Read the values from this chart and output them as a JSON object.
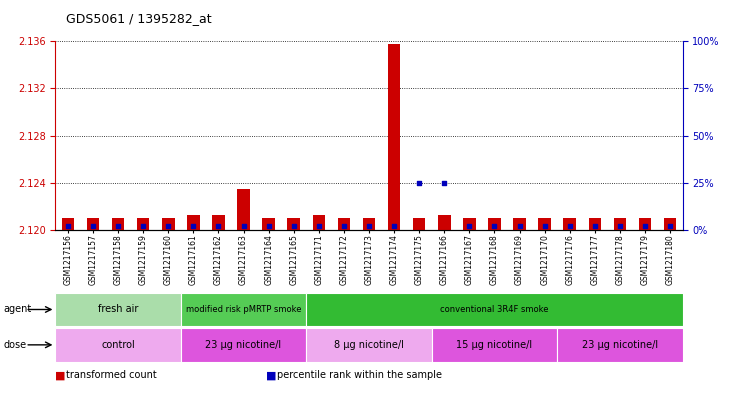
{
  "title": "GDS5061 / 1395282_at",
  "samples": [
    "GSM1217156",
    "GSM1217157",
    "GSM1217158",
    "GSM1217159",
    "GSM1217160",
    "GSM1217161",
    "GSM1217162",
    "GSM1217163",
    "GSM1217164",
    "GSM1217165",
    "GSM1217171",
    "GSM1217172",
    "GSM1217173",
    "GSM1217174",
    "GSM1217175",
    "GSM1217166",
    "GSM1217167",
    "GSM1217168",
    "GSM1217169",
    "GSM1217170",
    "GSM1217176",
    "GSM1217177",
    "GSM1217178",
    "GSM1217179",
    "GSM1217180"
  ],
  "transformed_counts": [
    2.121,
    2.121,
    2.121,
    2.121,
    2.121,
    2.1213,
    2.1213,
    2.1235,
    2.121,
    2.121,
    2.1213,
    2.121,
    2.121,
    2.1358,
    2.121,
    2.1213,
    2.121,
    2.121,
    2.121,
    2.121,
    2.121,
    2.121,
    2.121,
    2.121,
    2.121
  ],
  "percentile_ranks": [
    2,
    2,
    2,
    2,
    2,
    2,
    2,
    2,
    2,
    2,
    2,
    2,
    2,
    2,
    25,
    25,
    2,
    2,
    2,
    2,
    2,
    2,
    2,
    2,
    2
  ],
  "ylim_left": [
    2.12,
    2.136
  ],
  "ylim_right": [
    0,
    100
  ],
  "yticks_left": [
    2.12,
    2.124,
    2.128,
    2.132,
    2.136
  ],
  "yticks_right": [
    0,
    25,
    50,
    75,
    100
  ],
  "agent_groups": [
    {
      "label": "fresh air",
      "start": 0,
      "end": 5,
      "color": "#AADDAA"
    },
    {
      "label": "modified risk pMRTP smoke",
      "start": 5,
      "end": 10,
      "color": "#55CC55"
    },
    {
      "label": "conventional 3R4F smoke",
      "start": 10,
      "end": 25,
      "color": "#33BB33"
    }
  ],
  "dose_groups": [
    {
      "label": "control",
      "start": 0,
      "end": 5,
      "color": "#EEAAEE"
    },
    {
      "label": "23 μg nicotine/l",
      "start": 5,
      "end": 10,
      "color": "#DD55DD"
    },
    {
      "label": "8 μg nicotine/l",
      "start": 10,
      "end": 15,
      "color": "#EEAAEE"
    },
    {
      "label": "15 μg nicotine/l",
      "start": 15,
      "end": 20,
      "color": "#DD55DD"
    },
    {
      "label": "23 μg nicotine/l",
      "start": 20,
      "end": 25,
      "color": "#DD55DD"
    }
  ],
  "bar_color": "#CC0000",
  "dot_color": "#0000BB",
  "bar_width": 0.5,
  "base_value": 2.12,
  "grid_color": "black",
  "bg_color": "white",
  "tick_color_left": "#CC0000",
  "tick_color_right": "#0000BB",
  "legend_items": [
    {
      "label": "transformed count",
      "color": "#CC0000"
    },
    {
      "label": "percentile rank within the sample",
      "color": "#0000BB"
    }
  ]
}
